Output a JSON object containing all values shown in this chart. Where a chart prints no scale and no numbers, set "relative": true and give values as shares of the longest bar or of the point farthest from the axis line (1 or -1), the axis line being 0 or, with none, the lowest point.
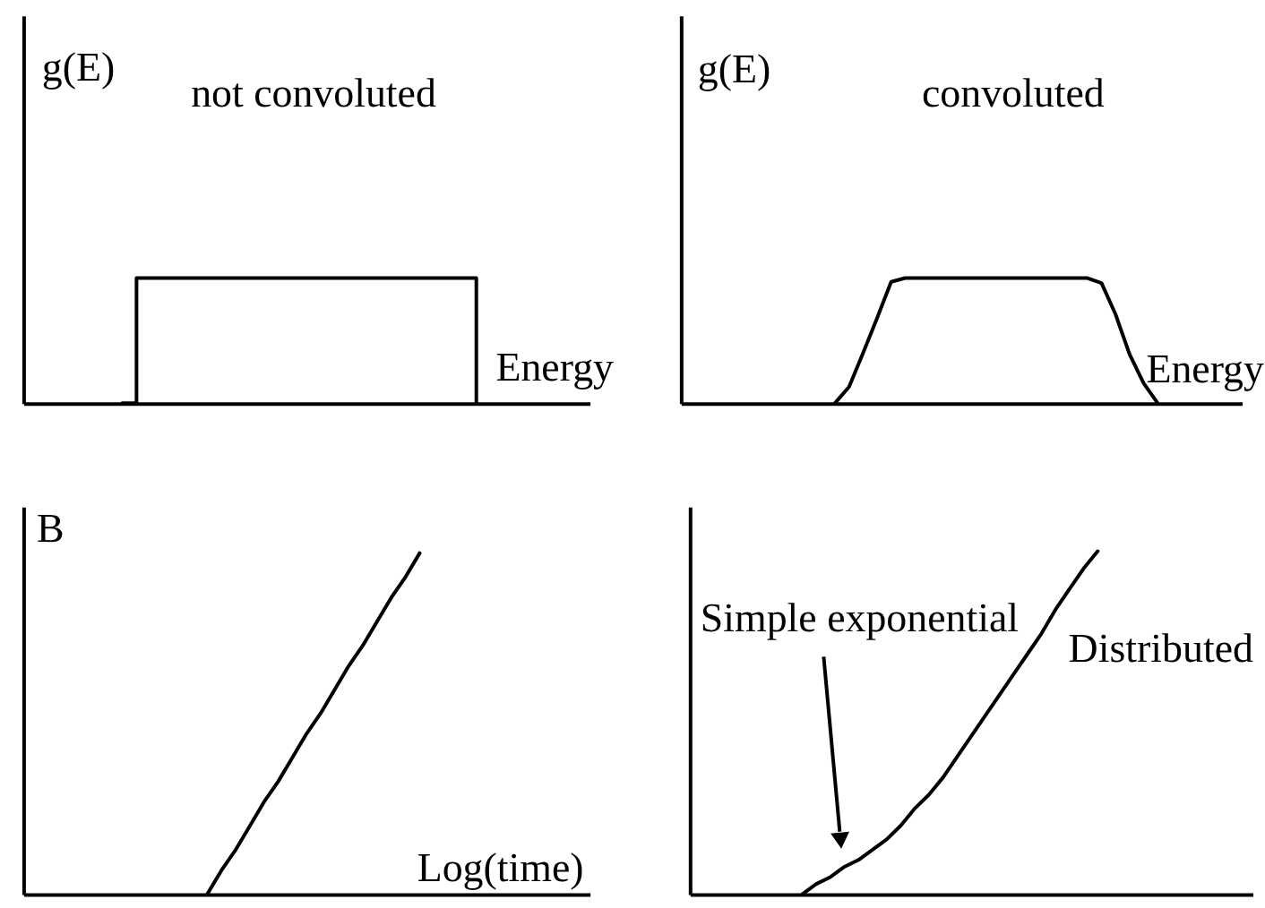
{
  "chart_data": [
    {
      "type": "step",
      "title": "not convoluted",
      "xlabel": "Energy",
      "ylabel": "g(E)",
      "relative": true,
      "tick_labels": false,
      "color": "#000000",
      "categories": [
        null,
        null,
        null,
        null,
        null,
        null,
        null,
        null,
        null,
        null,
        null,
        null,
        null,
        null,
        null,
        null,
        null,
        null,
        null,
        null,
        null,
        null,
        null,
        null,
        null,
        null,
        null,
        null,
        null,
        null,
        null,
        null,
        null,
        null,
        null,
        null,
        null,
        null,
        null,
        null,
        null
      ],
      "values": [
        null,
        null,
        null,
        null,
        null,
        null,
        null,
        0,
        1,
        1,
        1,
        1,
        1,
        1,
        1,
        1,
        1,
        1,
        1,
        1,
        1,
        1,
        1,
        1,
        1,
        1,
        1,
        1,
        1,
        1,
        1,
        1,
        0,
        null,
        null,
        null,
        null,
        null,
        null,
        null,
        null
      ]
    },
    {
      "type": "line",
      "title": "convoluted",
      "xlabel": "Energy",
      "ylabel": "g(E)",
      "relative": true,
      "tick_labels": false,
      "color": "#000000",
      "categories": [
        null,
        null,
        null,
        null,
        null,
        null,
        null,
        null,
        null,
        null,
        null,
        null,
        null,
        null,
        null,
        null,
        null,
        null,
        null,
        null,
        null,
        null,
        null,
        null,
        null,
        null,
        null,
        null,
        null,
        null,
        null,
        null,
        null,
        null,
        null,
        null,
        null,
        null,
        null,
        null,
        null
      ],
      "values": [
        null,
        null,
        null,
        null,
        null,
        null,
        null,
        null,
        null,
        null,
        null,
        0,
        0.13,
        0.4,
        0.68,
        0.97,
        1,
        1,
        1,
        1,
        1,
        1,
        1,
        1,
        1,
        1,
        1,
        1,
        1,
        1,
        0.96,
        0.71,
        0.39,
        0.16,
        0,
        null,
        null,
        null,
        null,
        null,
        null
      ]
    },
    {
      "type": "line",
      "xlabel": "Log(time)",
      "ylabel": "B",
      "relative": true,
      "tick_labels": false,
      "color": "#000000",
      "categories": [
        null,
        null,
        null,
        null,
        null,
        null,
        null,
        null,
        null,
        null,
        null,
        null,
        null,
        null,
        null,
        null,
        null,
        null,
        null,
        null,
        null,
        null,
        null,
        null,
        null,
        null,
        null,
        null,
        null,
        null,
        null,
        null,
        null,
        null,
        null,
        null,
        null,
        null,
        null,
        null,
        null
      ],
      "values": [
        null,
        null,
        null,
        null,
        null,
        null,
        null,
        null,
        null,
        null,
        null,
        null,
        null,
        0,
        0.07,
        0.13,
        0.2,
        0.27,
        0.33,
        0.4,
        0.47,
        0.53,
        0.6,
        0.67,
        0.73,
        0.8,
        0.87,
        0.93,
        1,
        null,
        null,
        null,
        null,
        null,
        null,
        null,
        null,
        null,
        null,
        null,
        null
      ]
    },
    {
      "type": "line",
      "annotations": [
        "Simple exponential",
        "Distributed"
      ],
      "relative": true,
      "tick_labels": false,
      "color": "#000000",
      "categories": [
        null,
        null,
        null,
        null,
        null,
        null,
        null,
        null,
        null,
        null,
        null,
        null,
        null,
        null,
        null,
        null,
        null,
        null,
        null,
        null,
        null,
        null,
        null,
        null,
        null,
        null,
        null,
        null,
        null,
        null,
        null,
        null,
        null,
        null,
        null,
        null,
        null,
        null,
        null,
        null,
        null
      ],
      "values": [
        null,
        null,
        null,
        null,
        null,
        null,
        null,
        null,
        0,
        0.03,
        0.05,
        0.08,
        0.1,
        0.13,
        0.16,
        0.2,
        0.25,
        0.29,
        0.34,
        0.4,
        0.46,
        0.52,
        0.58,
        0.64,
        0.7,
        0.76,
        0.83,
        0.89,
        0.95,
        1,
        null,
        null,
        null,
        null,
        null,
        null,
        null,
        null,
        null,
        null,
        null
      ]
    }
  ]
}
